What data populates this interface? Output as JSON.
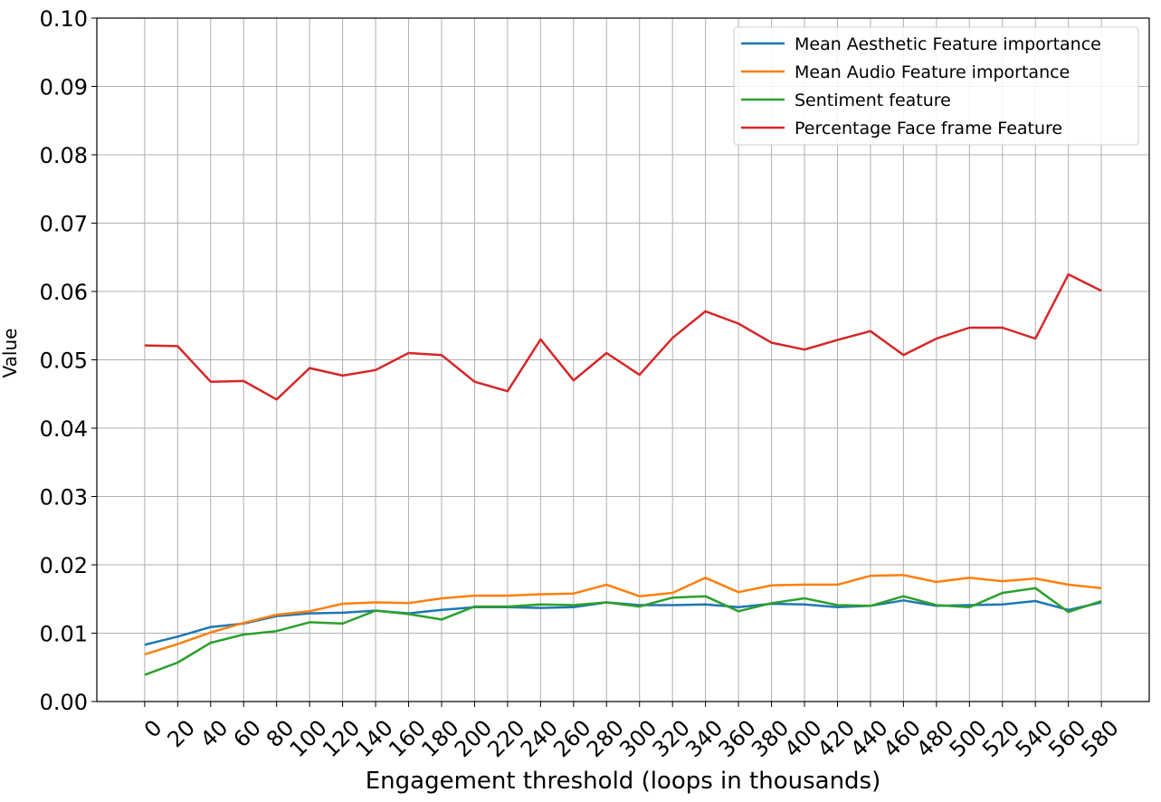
{
  "chart_data": {
    "type": "line",
    "title": "",
    "xlabel": "Engagement threshold (loops in thousands)",
    "ylabel": "Value",
    "x": [
      0,
      20,
      40,
      60,
      80,
      100,
      120,
      140,
      160,
      180,
      200,
      220,
      240,
      260,
      280,
      300,
      320,
      340,
      360,
      380,
      400,
      420,
      440,
      460,
      480,
      500,
      520,
      540,
      560,
      580
    ],
    "ylim": [
      0,
      0.1
    ],
    "yticks": [
      "0.00",
      "0.01",
      "0.02",
      "0.03",
      "0.04",
      "0.05",
      "0.06",
      "0.07",
      "0.08",
      "0.09",
      "0.10"
    ],
    "grid": true,
    "legend_position": "top-right",
    "series": [
      {
        "name": "Mean Aesthetic Feature importance",
        "color": "#1f77b4",
        "values": [
          0.0083,
          0.0095,
          0.0109,
          0.0114,
          0.0125,
          0.0129,
          0.013,
          0.0133,
          0.0129,
          0.0134,
          0.0138,
          0.0138,
          0.0137,
          0.0138,
          0.0145,
          0.0141,
          0.0141,
          0.0142,
          0.0138,
          0.0143,
          0.0142,
          0.0138,
          0.014,
          0.0148,
          0.014,
          0.0141,
          0.0142,
          0.0147,
          0.0134,
          0.0145
        ]
      },
      {
        "name": "Mean Audio Feature importance",
        "color": "#ff7f0e",
        "values": [
          0.0069,
          0.0084,
          0.0101,
          0.0115,
          0.0127,
          0.0132,
          0.0143,
          0.0145,
          0.0144,
          0.0151,
          0.0155,
          0.0155,
          0.0157,
          0.0158,
          0.0171,
          0.0154,
          0.0159,
          0.0181,
          0.016,
          0.017,
          0.0171,
          0.0171,
          0.0184,
          0.0185,
          0.0175,
          0.0181,
          0.0176,
          0.018,
          0.0171,
          0.0166
        ]
      },
      {
        "name": "Sentiment feature",
        "color": "#2ca02c",
        "values": [
          0.0039,
          0.0057,
          0.0086,
          0.0098,
          0.0103,
          0.0116,
          0.0114,
          0.0133,
          0.0128,
          0.012,
          0.0139,
          0.0139,
          0.0142,
          0.0141,
          0.0145,
          0.0139,
          0.0152,
          0.0154,
          0.0132,
          0.0144,
          0.0151,
          0.0141,
          0.014,
          0.0154,
          0.0141,
          0.0138,
          0.0159,
          0.0166,
          0.0131,
          0.0147
        ]
      },
      {
        "name": "Percentage Face frame Feature",
        "color": "#d62728",
        "values": [
          0.0521,
          0.052,
          0.0468,
          0.0469,
          0.0442,
          0.0488,
          0.0477,
          0.0485,
          0.051,
          0.0507,
          0.0468,
          0.0454,
          0.053,
          0.047,
          0.051,
          0.0478,
          0.0532,
          0.0571,
          0.0553,
          0.0525,
          0.0515,
          0.0529,
          0.0542,
          0.0507,
          0.0531,
          0.0547,
          0.0547,
          0.0531,
          0.0625,
          0.0601
        ]
      }
    ]
  }
}
